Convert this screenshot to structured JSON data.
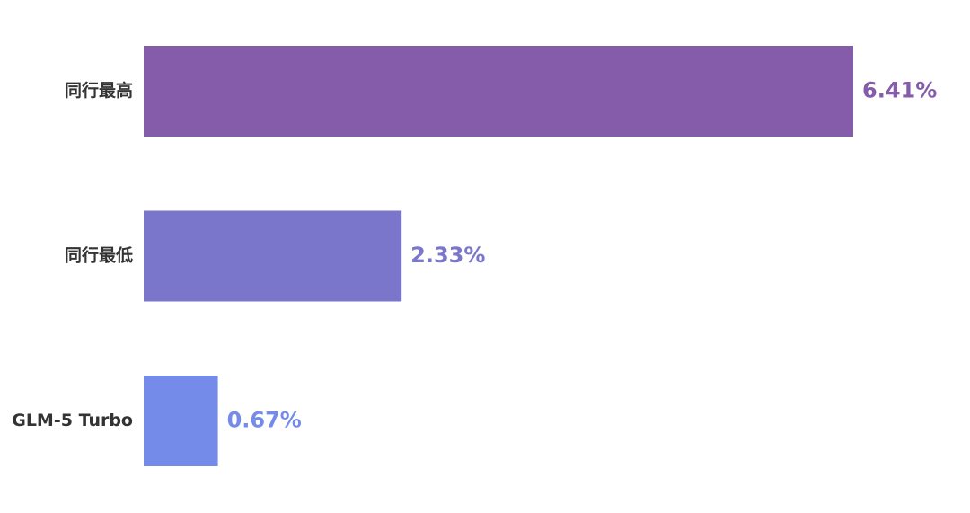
{
  "chart_data": {
    "type": "bar",
    "orientation": "horizontal",
    "categories": [
      "同行最高",
      "同行最低",
      "GLM-5 Turbo"
    ],
    "values": [
      6.41,
      2.33,
      0.67
    ],
    "value_labels": [
      "6.41%",
      "2.33%",
      "0.67%"
    ],
    "colors": [
      "#845ca9",
      "#7a76cb",
      "#748bea"
    ]
  }
}
